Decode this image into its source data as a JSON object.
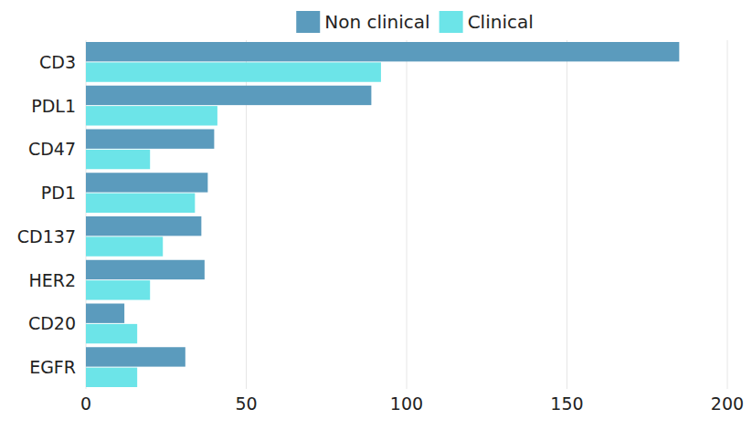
{
  "chart_data": {
    "type": "bar",
    "orientation": "horizontal",
    "categories": [
      "CD3",
      "PDL1",
      "CD47",
      "PD1",
      "CD137",
      "HER2",
      "CD20",
      "EGFR"
    ],
    "series": [
      {
        "name": "Non clinical",
        "color": "#5b9bbd",
        "values": [
          185,
          89,
          40,
          38,
          36,
          37,
          12,
          31
        ]
      },
      {
        "name": "Clinical",
        "color": "#6ce4e8",
        "values": [
          92,
          41,
          20,
          34,
          24,
          20,
          16,
          16
        ]
      }
    ],
    "xlim": [
      0,
      200
    ],
    "xticks": [
      0,
      50,
      100,
      150,
      200
    ],
    "grid": true,
    "legend": "top"
  }
}
